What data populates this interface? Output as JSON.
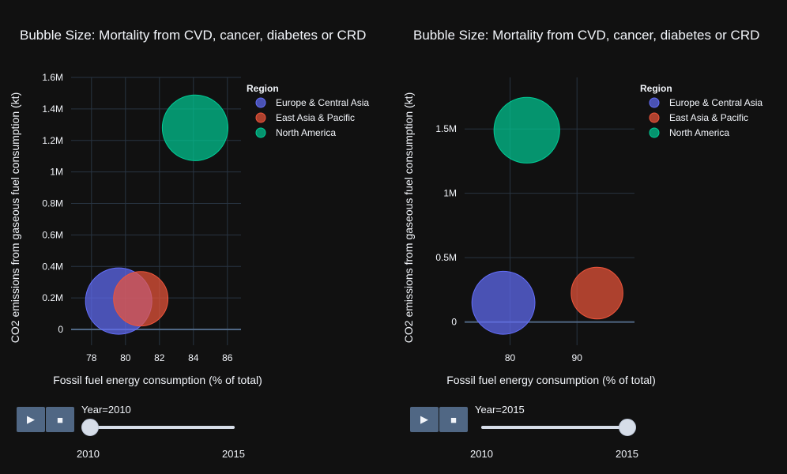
{
  "chart_data": [
    {
      "type": "scatter",
      "title": "Bubble Size: Mortality from CVD, cancer, diabetes or CRD",
      "xlabel": "Fossil fuel energy consumption (% of total)",
      "ylabel": "CO2 emissions from gaseous fuel consumption (kt)",
      "xlim": [
        76.8,
        86.8
      ],
      "ylim": [
        -100000,
        1600000
      ],
      "xticks": [
        78,
        80,
        82,
        84,
        86
      ],
      "yticks": [
        0,
        200000,
        400000,
        600000,
        800000,
        1000000,
        1200000,
        1400000,
        1600000
      ],
      "ytick_labels": [
        "0",
        "0.2M",
        "0.4M",
        "0.6M",
        "0.8M",
        "1M",
        "1.2M",
        "1.4M",
        "1.6M"
      ],
      "legend_title": "Region",
      "series": [
        {
          "name": "Europe & Central Asia",
          "color": "#636efa",
          "x": 79.6,
          "y": 180000,
          "size": 1.0
        },
        {
          "name": "East Asia & Pacific",
          "color": "#ef553b",
          "x": 80.9,
          "y": 195000,
          "size": 0.82
        },
        {
          "name": "North America",
          "color": "#00cc96",
          "x": 84.1,
          "y": 1280000,
          "size": 0.99
        }
      ],
      "controls": {
        "play_icon": "▶",
        "stop_icon": "■",
        "year_label": "Year=2010",
        "slider_min": "2010",
        "slider_max": "2015",
        "slider_value": 0
      }
    },
    {
      "type": "scatter",
      "title": "Bubble Size: Mortality from CVD, cancer, diabetes or CRD",
      "xlabel": "Fossil fuel energy consumption (% of total)",
      "ylabel": "CO2 emissions from gaseous fuel consumption (kt)",
      "xlim": [
        73.2,
        98.6
      ],
      "ylim": [
        -180000,
        1900000
      ],
      "xticks": [
        80,
        90
      ],
      "yticks": [
        0,
        500000,
        1000000,
        1500000
      ],
      "ytick_labels": [
        "0",
        "0.5M",
        "1M",
        "1.5M"
      ],
      "legend_title": "Region",
      "series": [
        {
          "name": "Europe & Central Asia",
          "color": "#636efa",
          "x": 79,
          "y": 150000,
          "size": 0.95
        },
        {
          "name": "East Asia & Pacific",
          "color": "#ef553b",
          "x": 93,
          "y": 225000,
          "size": 0.78
        },
        {
          "name": "North America",
          "color": "#00cc96",
          "x": 82.5,
          "y": 1490000,
          "size": 0.99
        }
      ],
      "controls": {
        "play_icon": "▶",
        "stop_icon": "■",
        "year_label": "Year=2015",
        "slider_min": "2010",
        "slider_max": "2015",
        "slider_value": 1
      }
    }
  ]
}
